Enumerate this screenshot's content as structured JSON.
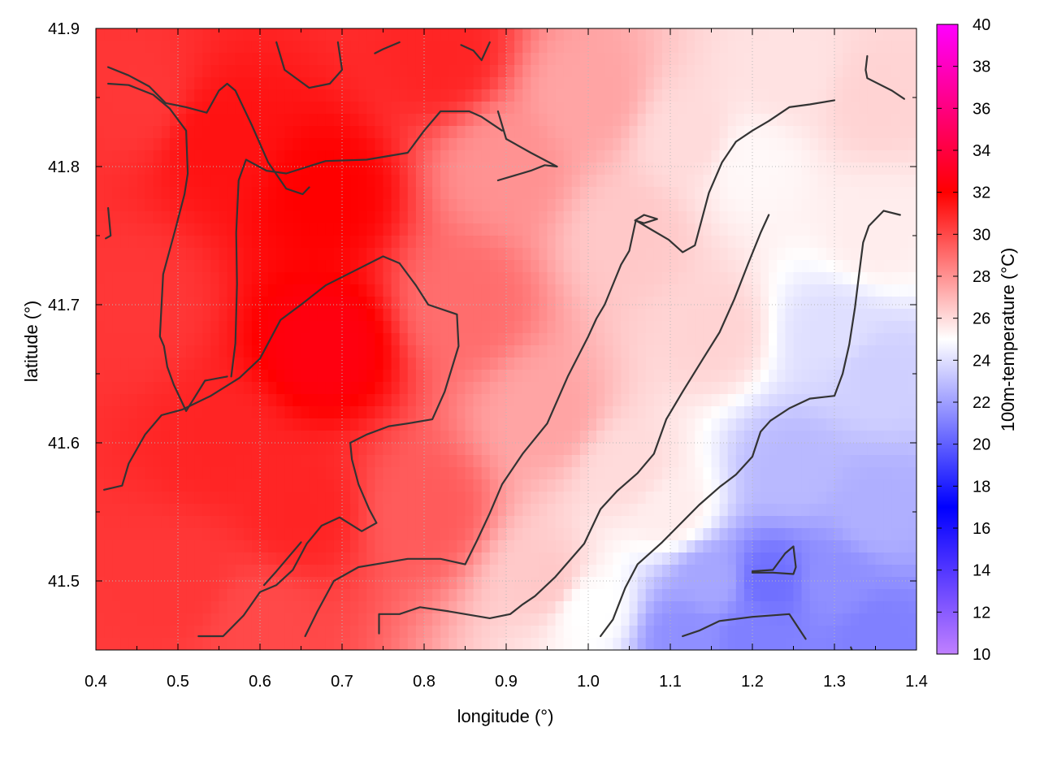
{
  "chart_data": {
    "type": "heatmap",
    "title": "",
    "xlabel": "longitude (°)",
    "ylabel": "latitude (°)",
    "colorbar_label": "100m-temperature (°C)",
    "xlim": [
      0.4,
      1.4
    ],
    "ylim": [
      41.45,
      41.9
    ],
    "x_ticks": [
      "0.4",
      "0.5",
      "0.6",
      "0.7",
      "0.8",
      "0.9",
      "1.0",
      "1.1",
      "1.2",
      "1.3",
      "1.4"
    ],
    "y_ticks": [
      "41.5",
      "41.6",
      "41.7",
      "41.8",
      "41.9"
    ],
    "colorbar_range": [
      10,
      40
    ],
    "colorbar_ticks": [
      "10",
      "12",
      "14",
      "16",
      "18",
      "20",
      "22",
      "24",
      "26",
      "28",
      "30",
      "32",
      "34",
      "36",
      "38",
      "40"
    ],
    "colorscale": [
      {
        "value": 10,
        "color": "#c080ff"
      },
      {
        "value": 17,
        "color": "#0000ff"
      },
      {
        "value": 25,
        "color": "#ffffff"
      },
      {
        "value": 32,
        "color": "#ff0000"
      },
      {
        "value": 40,
        "color": "#ff00ff"
      }
    ],
    "grid": true,
    "field_samples": [
      {
        "x": 0.45,
        "y": 41.85,
        "value": 30.5
      },
      {
        "x": 0.55,
        "y": 41.82,
        "value": 31.5
      },
      {
        "x": 0.68,
        "y": 41.78,
        "value": 32.0
      },
      {
        "x": 0.82,
        "y": 41.88,
        "value": 31.0
      },
      {
        "x": 0.45,
        "y": 41.7,
        "value": 30.5
      },
      {
        "x": 0.68,
        "y": 41.67,
        "value": 32.5
      },
      {
        "x": 0.55,
        "y": 41.6,
        "value": 31.0
      },
      {
        "x": 0.65,
        "y": 41.55,
        "value": 31.0
      },
      {
        "x": 0.5,
        "y": 41.5,
        "value": 30.5
      },
      {
        "x": 0.6,
        "y": 41.47,
        "value": 30.0
      },
      {
        "x": 0.85,
        "y": 41.7,
        "value": 29.0
      },
      {
        "x": 0.8,
        "y": 41.55,
        "value": 29.5
      },
      {
        "x": 0.9,
        "y": 41.8,
        "value": 28.0
      },
      {
        "x": 1.0,
        "y": 41.85,
        "value": 27.5
      },
      {
        "x": 0.95,
        "y": 41.62,
        "value": 27.5
      },
      {
        "x": 1.05,
        "y": 41.75,
        "value": 26.5
      },
      {
        "x": 1.12,
        "y": 41.82,
        "value": 26.0
      },
      {
        "x": 1.2,
        "y": 41.8,
        "value": 25.2
      },
      {
        "x": 1.25,
        "y": 41.87,
        "value": 25.8
      },
      {
        "x": 1.35,
        "y": 41.85,
        "value": 26.2
      },
      {
        "x": 1.35,
        "y": 41.75,
        "value": 25.5
      },
      {
        "x": 1.15,
        "y": 41.68,
        "value": 26.2
      },
      {
        "x": 1.05,
        "y": 41.58,
        "value": 26.0
      },
      {
        "x": 0.95,
        "y": 41.5,
        "value": 26.5
      },
      {
        "x": 1.0,
        "y": 41.48,
        "value": 25.0
      },
      {
        "x": 1.1,
        "y": 41.55,
        "value": 25.5
      },
      {
        "x": 1.3,
        "y": 41.68,
        "value": 24.0
      },
      {
        "x": 1.35,
        "y": 41.65,
        "value": 23.5
      },
      {
        "x": 1.25,
        "y": 41.58,
        "value": 22.8
      },
      {
        "x": 1.35,
        "y": 41.55,
        "value": 22.5
      },
      {
        "x": 1.15,
        "y": 41.5,
        "value": 22.2
      },
      {
        "x": 1.22,
        "y": 41.5,
        "value": 20.5
      },
      {
        "x": 1.3,
        "y": 41.5,
        "value": 21.5
      },
      {
        "x": 1.12,
        "y": 41.46,
        "value": 21.5
      },
      {
        "x": 1.2,
        "y": 41.46,
        "value": 21.0
      },
      {
        "x": 1.35,
        "y": 41.46,
        "value": 21.0
      }
    ],
    "contour_lines": [
      [
        [
          0.415,
          41.77
        ],
        [
          0.418,
          41.75
        ],
        [
          0.412,
          41.748
        ]
      ],
      [
        [
          0.415,
          41.872
        ],
        [
          0.44,
          41.866
        ],
        [
          0.465,
          41.858
        ],
        [
          0.485,
          41.846
        ],
        [
          0.51,
          41.843
        ],
        [
          0.535,
          41.839
        ],
        [
          0.55,
          41.855
        ],
        [
          0.56,
          41.86
        ],
        [
          0.57,
          41.855
        ],
        [
          0.59,
          41.83
        ],
        [
          0.61,
          41.803
        ],
        [
          0.632,
          41.784
        ],
        [
          0.652,
          41.78
        ],
        [
          0.66,
          41.785
        ]
      ],
      [
        [
          0.415,
          41.86
        ],
        [
          0.44,
          41.859
        ],
        [
          0.47,
          41.852
        ],
        [
          0.49,
          41.842
        ],
        [
          0.51,
          41.826
        ],
        [
          0.512,
          41.795
        ],
        [
          0.508,
          41.78
        ],
        [
          0.497,
          41.755
        ],
        [
          0.482,
          41.722
        ],
        [
          0.478,
          41.677
        ],
        [
          0.483,
          41.67
        ],
        [
          0.487,
          41.655
        ],
        [
          0.495,
          41.642
        ],
        [
          0.51,
          41.623
        ],
        [
          0.533,
          41.645
        ],
        [
          0.56,
          41.648
        ]
      ],
      [
        [
          0.565,
          41.648
        ],
        [
          0.57,
          41.672
        ],
        [
          0.572,
          41.715
        ],
        [
          0.571,
          41.752
        ],
        [
          0.574,
          41.79
        ],
        [
          0.583,
          41.805
        ],
        [
          0.608,
          41.797
        ],
        [
          0.632,
          41.795
        ],
        [
          0.68,
          41.804
        ],
        [
          0.73,
          41.805
        ],
        [
          0.78,
          41.81
        ],
        [
          0.8,
          41.826
        ],
        [
          0.82,
          41.84
        ],
        [
          0.855,
          41.84
        ],
        [
          0.87,
          41.836
        ],
        [
          0.895,
          41.826
        ]
      ],
      [
        [
          0.62,
          41.89
        ],
        [
          0.63,
          41.87
        ],
        [
          0.66,
          41.857
        ],
        [
          0.685,
          41.86
        ],
        [
          0.7,
          41.87
        ],
        [
          0.695,
          41.89
        ]
      ],
      [
        [
          0.41,
          41.566
        ],
        [
          0.432,
          41.569
        ],
        [
          0.44,
          41.585
        ],
        [
          0.46,
          41.606
        ],
        [
          0.48,
          41.62
        ],
        [
          0.505,
          41.624
        ],
        [
          0.54,
          41.634
        ],
        [
          0.575,
          41.647
        ],
        [
          0.6,
          41.661
        ],
        [
          0.625,
          41.689
        ],
        [
          0.65,
          41.7
        ],
        [
          0.68,
          41.714
        ],
        [
          0.72,
          41.726
        ],
        [
          0.75,
          41.735
        ],
        [
          0.77,
          41.73
        ],
        [
          0.79,
          41.714
        ],
        [
          0.805,
          41.7
        ],
        [
          0.84,
          41.693
        ],
        [
          0.842,
          41.67
        ],
        [
          0.825,
          41.637
        ],
        [
          0.81,
          41.617
        ],
        [
          0.78,
          41.614
        ],
        [
          0.757,
          41.612
        ],
        [
          0.73,
          41.606
        ],
        [
          0.71,
          41.6
        ],
        [
          0.712,
          41.588
        ],
        [
          0.72,
          41.57
        ],
        [
          0.733,
          41.552
        ],
        [
          0.742,
          41.542
        ],
        [
          0.724,
          41.536
        ],
        [
          0.697,
          41.546
        ],
        [
          0.675,
          41.54
        ],
        [
          0.657,
          41.527
        ],
        [
          0.64,
          41.508
        ],
        [
          0.62,
          41.497
        ],
        [
          0.6,
          41.492
        ],
        [
          0.58,
          41.475
        ],
        [
          0.555,
          41.46
        ],
        [
          0.525,
          41.46
        ]
      ],
      [
        [
          0.605,
          41.497
        ],
        [
          0.62,
          41.507
        ],
        [
          0.65,
          41.528
        ]
      ],
      [
        [
          0.655,
          41.46
        ],
        [
          0.67,
          41.478
        ],
        [
          0.69,
          41.5
        ],
        [
          0.72,
          41.51
        ],
        [
          0.75,
          41.513
        ],
        [
          0.78,
          41.516
        ],
        [
          0.82,
          41.516
        ],
        [
          0.85,
          41.512
        ],
        [
          0.865,
          41.53
        ],
        [
          0.88,
          41.549
        ],
        [
          0.895,
          41.57
        ],
        [
          0.92,
          41.592
        ],
        [
          0.95,
          41.614
        ],
        [
          0.975,
          41.648
        ],
        [
          1.0,
          41.677
        ],
        [
          1.01,
          41.69
        ],
        [
          1.02,
          41.7
        ],
        [
          1.04,
          41.729
        ],
        [
          1.05,
          41.739
        ],
        [
          1.058,
          41.761
        ],
        [
          1.075,
          41.755
        ],
        [
          1.098,
          41.747
        ],
        [
          1.115,
          41.738
        ],
        [
          1.13,
          41.743
        ],
        [
          1.147,
          41.781
        ],
        [
          1.163,
          41.803
        ],
        [
          1.18,
          41.818
        ],
        [
          1.2,
          41.826
        ],
        [
          1.22,
          41.833
        ],
        [
          1.245,
          41.843
        ],
        [
          1.27,
          41.845
        ],
        [
          1.3,
          41.848
        ]
      ],
      [
        [
          0.89,
          41.84
        ],
        [
          0.9,
          41.82
        ],
        [
          0.93,
          41.81
        ],
        [
          0.962,
          41.8
        ],
        [
          0.947,
          41.801
        ],
        [
          0.93,
          41.797
        ],
        [
          0.89,
          41.79
        ]
      ],
      [
        [
          0.745,
          41.462
        ],
        [
          0.745,
          41.476
        ],
        [
          0.77,
          41.476
        ],
        [
          0.795,
          41.481
        ],
        [
          0.83,
          41.478
        ],
        [
          0.88,
          41.473
        ],
        [
          0.905,
          41.476
        ],
        [
          0.92,
          41.483
        ],
        [
          0.935,
          41.489
        ],
        [
          0.96,
          41.503
        ],
        [
          0.995,
          41.527
        ],
        [
          1.015,
          41.552
        ],
        [
          1.035,
          41.565
        ],
        [
          1.06,
          41.578
        ],
        [
          1.08,
          41.592
        ],
        [
          1.095,
          41.617
        ],
        [
          1.115,
          41.637
        ],
        [
          1.14,
          41.661
        ],
        [
          1.16,
          41.68
        ],
        [
          1.178,
          41.704
        ],
        [
          1.195,
          41.73
        ],
        [
          1.21,
          41.752
        ],
        [
          1.22,
          41.765
        ]
      ],
      [
        [
          1.057,
          41.761
        ],
        [
          1.068,
          41.765
        ],
        [
          1.084,
          41.762
        ],
        [
          1.068,
          41.759
        ],
        [
          1.057,
          41.761
        ]
      ],
      [
        [
          1.015,
          41.46
        ],
        [
          1.03,
          41.472
        ],
        [
          1.045,
          41.495
        ],
        [
          1.06,
          41.512
        ],
        [
          1.09,
          41.528
        ],
        [
          1.11,
          41.54
        ],
        [
          1.135,
          41.555
        ],
        [
          1.16,
          41.568
        ],
        [
          1.18,
          41.577
        ],
        [
          1.2,
          41.59
        ],
        [
          1.21,
          41.608
        ],
        [
          1.222,
          41.616
        ],
        [
          1.245,
          41.625
        ],
        [
          1.27,
          41.632
        ],
        [
          1.3,
          41.634
        ],
        [
          1.31,
          41.65
        ],
        [
          1.318,
          41.671
        ],
        [
          1.325,
          41.698
        ],
        [
          1.33,
          41.722
        ],
        [
          1.335,
          41.745
        ],
        [
          1.342,
          41.757
        ],
        [
          1.36,
          41.768
        ],
        [
          1.38,
          41.765
        ]
      ],
      [
        [
          1.2,
          41.507
        ],
        [
          1.225,
          41.508
        ],
        [
          1.24,
          41.52
        ],
        [
          1.25,
          41.525
        ],
        [
          1.253,
          41.51
        ],
        [
          1.25,
          41.505
        ],
        [
          1.225,
          41.506
        ],
        [
          1.2,
          41.506
        ]
      ],
      [
        [
          1.115,
          41.46
        ],
        [
          1.135,
          41.464
        ],
        [
          1.16,
          41.471
        ],
        [
          1.2,
          41.474
        ],
        [
          1.245,
          41.476
        ],
        [
          1.265,
          41.458
        ]
      ],
      [
        [
          1.32,
          41.452
        ],
        [
          1.322,
          41.449
        ]
      ],
      [
        [
          1.34,
          41.88
        ],
        [
          1.338,
          41.87
        ],
        [
          1.34,
          41.864
        ],
        [
          1.37,
          41.855
        ],
        [
          1.385,
          41.849
        ]
      ],
      [
        [
          0.74,
          41.882
        ],
        [
          0.75,
          41.885
        ],
        [
          0.77,
          41.89
        ]
      ],
      [
        [
          0.845,
          41.888
        ],
        [
          0.86,
          41.884
        ],
        [
          0.87,
          41.877
        ],
        [
          0.88,
          41.89
        ]
      ]
    ]
  }
}
